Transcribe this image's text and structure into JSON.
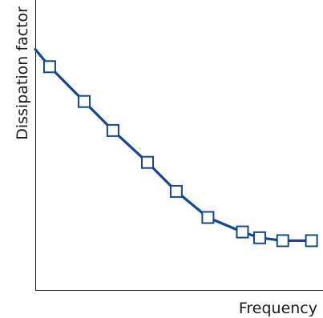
{
  "chart_data": {
    "type": "line",
    "title": "",
    "xlabel": "Frequency",
    "ylabel": "Dissipation factor",
    "xlim": [
      0,
      100
    ],
    "ylim": [
      0,
      100
    ],
    "x_ticks_shown": false,
    "y_ticks_shown": false,
    "grid": false,
    "legend": "none",
    "series": [
      {
        "color": "#0d47a1",
        "marker": "square-open",
        "line_starts_at_x": 0,
        "line_start_y": 83,
        "x": [
          5,
          17,
          27,
          39,
          49,
          60,
          72,
          78,
          86,
          96
        ],
        "y": [
          77,
          65,
          55,
          44,
          34,
          25,
          20,
          18,
          17,
          17
        ]
      }
    ]
  }
}
